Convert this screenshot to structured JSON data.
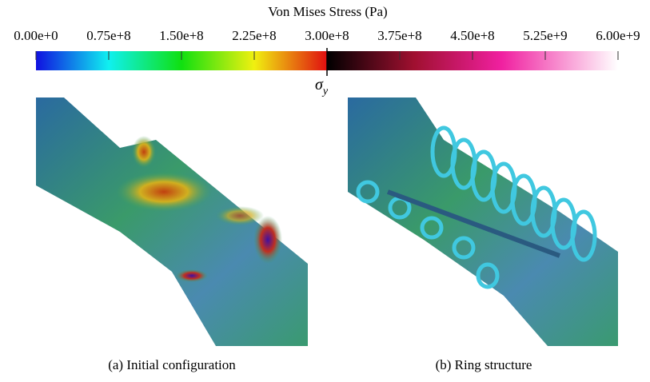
{
  "colorbar": {
    "title": "Von Mises Stress (Pa)",
    "ticks": [
      "0.00e+0",
      "0.75e+8",
      "1.50e+8",
      "2.25e+8",
      "3.00e+8",
      "3.75e+8",
      "4.50e+8",
      "5.25e+9",
      "6.00e+9"
    ],
    "threshold_symbol": "σ",
    "threshold_subscript": "y"
  },
  "panels": [
    {
      "caption": "(a) Initial configuration"
    },
    {
      "caption": "(b) Ring structure"
    }
  ]
}
